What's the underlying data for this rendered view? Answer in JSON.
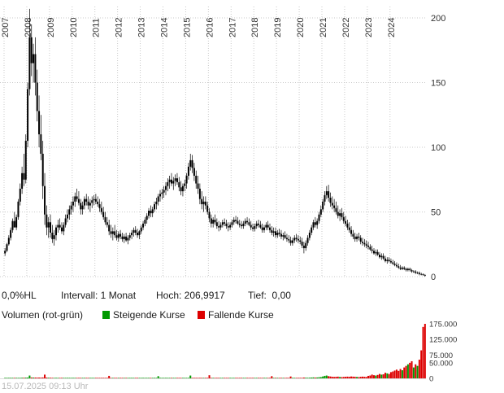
{
  "chart_data": {
    "type": "candlestick",
    "title": "",
    "interval": "1 Monat",
    "start": "2007-01",
    "ylim": [
      0,
      210
    ],
    "y_ticks": [
      0,
      50,
      100,
      150,
      200
    ],
    "y_tick_labels": [
      "0",
      "50",
      "100",
      "150",
      "200"
    ],
    "x_tick_years": [
      "2007",
      "2008",
      "2009",
      "2010",
      "2011",
      "2012",
      "2013",
      "2014",
      "2015",
      "2016",
      "2017",
      "2018",
      "2019",
      "2020",
      "2021",
      "2022",
      "2023",
      "2024"
    ],
    "high": 206.9917,
    "low": 0.0,
    "grid": true,
    "legend_position": "below",
    "volume_ticks": [
      0,
      50000,
      75000,
      125000,
      175000
    ],
    "volume_tick_labels": [
      "0",
      "50.000",
      "75.000",
      "125.000",
      "175.000"
    ],
    "volume_max": 175000,
    "colors": {
      "up": "#009900",
      "down": "#dd0000",
      "candle": "#000000",
      "grid": "#c8c8c8",
      "axis_text": "#333333"
    },
    "candles": [
      [
        18,
        22,
        16,
        20,
        800
      ],
      [
        20,
        26,
        19,
        25,
        900
      ],
      [
        25,
        32,
        24,
        30,
        700
      ],
      [
        30,
        38,
        28,
        36,
        1100
      ],
      [
        36,
        45,
        34,
        43,
        1000
      ],
      [
        43,
        50,
        40,
        38,
        1200
      ],
      [
        38,
        48,
        36,
        46,
        900
      ],
      [
        46,
        60,
        44,
        58,
        1500
      ],
      [
        58,
        72,
        55,
        68,
        1400
      ],
      [
        68,
        85,
        64,
        80,
        1800
      ],
      [
        80,
        95,
        70,
        75,
        2000
      ],
      [
        75,
        110,
        72,
        105,
        2200
      ],
      [
        105,
        150,
        100,
        145,
        2500
      ],
      [
        145,
        207,
        140,
        185,
        9000
      ],
      [
        185,
        195,
        155,
        165,
        2800
      ],
      [
        165,
        180,
        150,
        172,
        2400
      ],
      [
        172,
        185,
        140,
        150,
        2600
      ],
      [
        150,
        160,
        120,
        128,
        2200
      ],
      [
        128,
        140,
        100,
        110,
        2500
      ],
      [
        110,
        125,
        90,
        95,
        2300
      ],
      [
        95,
        105,
        60,
        70,
        2800
      ],
      [
        70,
        80,
        40,
        48,
        12000
      ],
      [
        48,
        55,
        32,
        38,
        2600
      ],
      [
        38,
        46,
        30,
        42,
        2000
      ],
      [
        42,
        48,
        30,
        34,
        1800
      ],
      [
        34,
        40,
        26,
        29,
        1600
      ],
      [
        29,
        36,
        24,
        32,
        1500
      ],
      [
        32,
        40,
        28,
        38,
        1400
      ],
      [
        38,
        44,
        34,
        40,
        1200
      ],
      [
        40,
        45,
        36,
        38,
        1100
      ],
      [
        38,
        42,
        33,
        35,
        1000
      ],
      [
        35,
        42,
        32,
        40,
        1200
      ],
      [
        40,
        48,
        38,
        45,
        1300
      ],
      [
        45,
        52,
        42,
        48,
        1400
      ],
      [
        48,
        55,
        44,
        52,
        1300
      ],
      [
        52,
        58,
        48,
        55,
        1200
      ],
      [
        55,
        62,
        50,
        58,
        1100
      ],
      [
        58,
        65,
        54,
        62,
        1200
      ],
      [
        62,
        68,
        58,
        60,
        1000
      ],
      [
        60,
        66,
        55,
        57,
        900
      ],
      [
        57,
        60,
        48,
        52,
        1100
      ],
      [
        52,
        58,
        48,
        55,
        800
      ],
      [
        55,
        62,
        52,
        60,
        900
      ],
      [
        60,
        64,
        55,
        58,
        1000
      ],
      [
        58,
        62,
        52,
        55,
        800
      ],
      [
        55,
        60,
        50,
        57,
        700
      ],
      [
        57,
        62,
        53,
        59,
        800
      ],
      [
        59,
        63,
        55,
        60,
        900
      ],
      [
        60,
        64,
        56,
        58,
        800
      ],
      [
        58,
        62,
        54,
        56,
        700
      ],
      [
        56,
        60,
        50,
        53,
        900
      ],
      [
        53,
        58,
        48,
        50,
        800
      ],
      [
        50,
        54,
        44,
        46,
        1000
      ],
      [
        46,
        50,
        40,
        42,
        900
      ],
      [
        42,
        46,
        38,
        40,
        800
      ],
      [
        40,
        44,
        32,
        35,
        8000
      ],
      [
        35,
        40,
        30,
        33,
        1100
      ],
      [
        33,
        38,
        28,
        35,
        1000
      ],
      [
        35,
        40,
        30,
        32,
        800
      ],
      [
        32,
        36,
        28,
        30,
        700
      ],
      [
        30,
        35,
        27,
        33,
        600
      ],
      [
        33,
        36,
        29,
        31,
        700
      ],
      [
        31,
        34,
        27,
        29,
        600
      ],
      [
        29,
        33,
        26,
        31,
        500
      ],
      [
        31,
        34,
        27,
        28,
        600
      ],
      [
        28,
        32,
        25,
        30,
        500
      ],
      [
        30,
        34,
        28,
        32,
        400
      ],
      [
        32,
        36,
        29,
        34,
        500
      ],
      [
        34,
        38,
        31,
        36,
        600
      ],
      [
        36,
        39,
        32,
        34,
        500
      ],
      [
        34,
        37,
        30,
        32,
        400
      ],
      [
        32,
        36,
        29,
        35,
        500
      ],
      [
        35,
        40,
        33,
        38,
        600
      ],
      [
        38,
        43,
        36,
        41,
        700
      ],
      [
        41,
        46,
        39,
        44,
        800
      ],
      [
        44,
        49,
        41,
        47,
        700
      ],
      [
        47,
        53,
        45,
        51,
        900
      ],
      [
        51,
        55,
        46,
        49,
        800
      ],
      [
        49,
        54,
        46,
        52,
        700
      ],
      [
        52,
        58,
        50,
        56,
        900
      ],
      [
        56,
        61,
        52,
        58,
        800
      ],
      [
        58,
        64,
        55,
        62,
        7000
      ],
      [
        62,
        67,
        58,
        64,
        900
      ],
      [
        64,
        68,
        60,
        65,
        800
      ],
      [
        65,
        70,
        61,
        67,
        900
      ],
      [
        67,
        73,
        63,
        70,
        1000
      ],
      [
        70,
        76,
        66,
        73,
        900
      ],
      [
        73,
        78,
        68,
        75,
        1100
      ],
      [
        75,
        80,
        70,
        72,
        1000
      ],
      [
        72,
        77,
        67,
        74,
        800
      ],
      [
        74,
        79,
        70,
        76,
        900
      ],
      [
        76,
        80,
        71,
        73,
        1000
      ],
      [
        73,
        77,
        66,
        69,
        1100
      ],
      [
        69,
        74,
        63,
        66,
        1000
      ],
      [
        66,
        72,
        62,
        70,
        900
      ],
      [
        70,
        75,
        66,
        72,
        800
      ],
      [
        72,
        80,
        68,
        78,
        1200
      ],
      [
        78,
        88,
        75,
        85,
        1400
      ],
      [
        85,
        95,
        82,
        90,
        9000
      ],
      [
        90,
        94,
        80,
        84,
        1400
      ],
      [
        84,
        88,
        74,
        78,
        1300
      ],
      [
        78,
        82,
        68,
        72,
        1200
      ],
      [
        72,
        78,
        64,
        68,
        1100
      ],
      [
        68,
        72,
        56,
        60,
        1400
      ],
      [
        60,
        66,
        52,
        56,
        1300
      ],
      [
        56,
        62,
        50,
        58,
        1100
      ],
      [
        58,
        62,
        52,
        55,
        900
      ],
      [
        55,
        58,
        48,
        50,
        1000
      ],
      [
        50,
        53,
        42,
        45,
        10000
      ],
      [
        45,
        48,
        38,
        41,
        1100
      ],
      [
        41,
        46,
        38,
        44,
        900
      ],
      [
        44,
        48,
        40,
        42,
        800
      ],
      [
        42,
        45,
        37,
        39,
        900
      ],
      [
        39,
        43,
        35,
        38,
        800
      ],
      [
        38,
        42,
        36,
        40,
        700
      ],
      [
        40,
        44,
        38,
        42,
        600
      ],
      [
        42,
        45,
        39,
        41,
        700
      ],
      [
        41,
        44,
        37,
        39,
        600
      ],
      [
        39,
        42,
        35,
        38,
        700
      ],
      [
        38,
        42,
        36,
        40,
        600
      ],
      [
        40,
        44,
        38,
        42,
        500
      ],
      [
        42,
        46,
        40,
        44,
        600
      ],
      [
        44,
        47,
        41,
        43,
        500
      ],
      [
        43,
        46,
        40,
        41,
        400
      ],
      [
        41,
        44,
        38,
        40,
        500
      ],
      [
        40,
        43,
        37,
        39,
        400
      ],
      [
        39,
        43,
        37,
        41,
        500
      ],
      [
        41,
        45,
        39,
        43,
        600
      ],
      [
        43,
        46,
        40,
        42,
        500
      ],
      [
        42,
        45,
        39,
        40,
        400
      ],
      [
        40,
        43,
        36,
        38,
        500
      ],
      [
        38,
        41,
        35,
        37,
        400
      ],
      [
        37,
        41,
        35,
        39,
        500
      ],
      [
        39,
        43,
        37,
        41,
        600
      ],
      [
        41,
        44,
        38,
        40,
        500
      ],
      [
        40,
        43,
        37,
        38,
        400
      ],
      [
        38,
        41,
        34,
        36,
        500
      ],
      [
        36,
        40,
        34,
        38,
        400
      ],
      [
        38,
        42,
        36,
        40,
        500
      ],
      [
        40,
        43,
        36,
        38,
        600
      ],
      [
        38,
        41,
        34,
        36,
        500
      ],
      [
        36,
        39,
        32,
        34,
        7000
      ],
      [
        34,
        38,
        31,
        35,
        600
      ],
      [
        35,
        38,
        30,
        32,
        500
      ],
      [
        32,
        36,
        30,
        34,
        500
      ],
      [
        34,
        37,
        31,
        33,
        400
      ],
      [
        33,
        36,
        29,
        31,
        500
      ],
      [
        31,
        34,
        28,
        32,
        400
      ],
      [
        32,
        35,
        29,
        30,
        500
      ],
      [
        30,
        33,
        27,
        29,
        400
      ],
      [
        29,
        32,
        26,
        28,
        500
      ],
      [
        28,
        31,
        24,
        26,
        6000
      ],
      [
        26,
        30,
        24,
        28,
        500
      ],
      [
        28,
        32,
        26,
        30,
        400
      ],
      [
        30,
        33,
        27,
        29,
        500
      ],
      [
        29,
        32,
        26,
        28,
        400
      ],
      [
        28,
        31,
        25,
        27,
        900
      ],
      [
        27,
        30,
        22,
        24,
        1500
      ],
      [
        24,
        27,
        18,
        22,
        2500
      ],
      [
        22,
        28,
        20,
        26,
        2000
      ],
      [
        26,
        32,
        24,
        30,
        1800
      ],
      [
        30,
        36,
        28,
        34,
        2000
      ],
      [
        34,
        40,
        32,
        38,
        2500
      ],
      [
        38,
        44,
        36,
        42,
        3000
      ],
      [
        42,
        46,
        38,
        40,
        2500
      ],
      [
        40,
        45,
        37,
        43,
        2800
      ],
      [
        43,
        50,
        41,
        48,
        3500
      ],
      [
        48,
        55,
        46,
        52,
        4000
      ],
      [
        52,
        60,
        50,
        58,
        6000
      ],
      [
        58,
        66,
        55,
        63,
        8000
      ],
      [
        63,
        70,
        60,
        66,
        9000
      ],
      [
        66,
        71,
        58,
        61,
        7000
      ],
      [
        61,
        65,
        54,
        57,
        6000
      ],
      [
        57,
        62,
        52,
        55,
        5000
      ],
      [
        55,
        60,
        50,
        53,
        4500
      ],
      [
        53,
        58,
        48,
        50,
        5000
      ],
      [
        50,
        55,
        45,
        47,
        5500
      ],
      [
        47,
        52,
        43,
        49,
        4500
      ],
      [
        49,
        53,
        44,
        46,
        4000
      ],
      [
        46,
        50,
        41,
        43,
        4500
      ],
      [
        43,
        47,
        39,
        41,
        5000
      ],
      [
        41,
        44,
        36,
        38,
        5500
      ],
      [
        38,
        42,
        34,
        36,
        5000
      ],
      [
        36,
        39,
        31,
        33,
        6000
      ],
      [
        33,
        36,
        29,
        31,
        5500
      ],
      [
        31,
        34,
        27,
        29,
        5000
      ],
      [
        29,
        33,
        27,
        31,
        4500
      ],
      [
        31,
        34,
        28,
        30,
        4000
      ],
      [
        30,
        32,
        25,
        27,
        5000
      ],
      [
        27,
        30,
        24,
        26,
        5500
      ],
      [
        26,
        29,
        23,
        25,
        5000
      ],
      [
        25,
        28,
        22,
        24,
        4500
      ],
      [
        24,
        27,
        21,
        23,
        8000
      ],
      [
        23,
        25,
        20,
        21,
        9000
      ],
      [
        21,
        24,
        18,
        20,
        12000
      ],
      [
        20,
        22,
        17,
        18,
        10000
      ],
      [
        18,
        21,
        16,
        19,
        9000
      ],
      [
        19,
        21,
        16,
        17,
        11000
      ],
      [
        17,
        19,
        14,
        15,
        14000
      ],
      [
        15,
        18,
        13,
        16,
        12000
      ],
      [
        16,
        18,
        13,
        14,
        13000
      ],
      [
        14,
        16,
        11,
        12,
        18000
      ],
      [
        12,
        15,
        10,
        13,
        16000
      ],
      [
        13,
        15,
        11,
        12,
        14000
      ],
      [
        12,
        14,
        10,
        11,
        20000
      ],
      [
        11,
        13,
        9,
        10,
        22000
      ],
      [
        10,
        12,
        8,
        9,
        25000
      ],
      [
        9,
        11,
        7,
        8,
        28000
      ],
      [
        8,
        10,
        6,
        7,
        24000
      ],
      [
        7,
        9,
        5,
        6,
        30000
      ],
      [
        6,
        8,
        5,
        7,
        26000
      ],
      [
        7,
        8,
        5,
        6,
        35000
      ],
      [
        6,
        7,
        4,
        5,
        40000
      ],
      [
        5,
        7,
        4,
        6,
        45000
      ],
      [
        6,
        7,
        4,
        5,
        50000
      ],
      [
        5,
        6,
        3,
        4,
        55000
      ],
      [
        4,
        5,
        3,
        4,
        35000
      ],
      [
        4,
        5,
        2,
        3,
        45000
      ],
      [
        3,
        4,
        2,
        3,
        40000
      ],
      [
        3,
        4,
        1,
        2,
        60000
      ],
      [
        2,
        3,
        1,
        1.8,
        90000
      ],
      [
        1.8,
        2.5,
        0.8,
        1.2,
        165000
      ],
      [
        1.2,
        2,
        0,
        0.8,
        175000
      ]
    ]
  },
  "info_bar": {
    "change": "0,0%HL",
    "interval": "Intervall: 1 Monat",
    "high": "Hoch: 206,9917",
    "low": "Tief:  0,00"
  },
  "legend": {
    "volume": "Volumen (rot-grün)",
    "up": "Steigende Kurse",
    "down": "Fallende Kurse"
  },
  "footer": {
    "timestamp": "15.07.2025 09:13 Uhr"
  }
}
